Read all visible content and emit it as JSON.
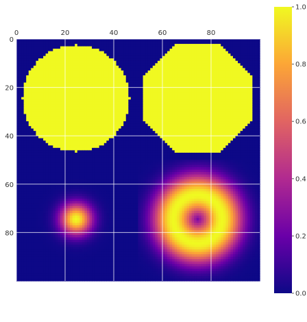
{
  "chart_data": {
    "type": "heatmap",
    "title": "",
    "xlabel": "",
    "ylabel": "",
    "grid": true,
    "image_shape": [
      100,
      100
    ],
    "x_axis_position": "top",
    "xlim": [
      0,
      100
    ],
    "ylim": [
      100,
      0
    ],
    "x_ticks": [
      0,
      20,
      40,
      60,
      80
    ],
    "y_ticks": [
      0,
      20,
      40,
      60,
      80
    ],
    "colormap": "plasma",
    "colormap_stops": [
      "#0d0887",
      "#6a00a8",
      "#b12a90",
      "#e16462",
      "#fca636",
      "#f0f921"
    ],
    "colorbar": {
      "range": [
        0.0,
        1.0
      ],
      "ticks": [
        0.0,
        0.2,
        0.4,
        0.6,
        0.8,
        1.0
      ],
      "tick_labels": [
        "0.0",
        "0.2",
        "0.4",
        "0.6",
        "0.8",
        "1.0"
      ]
    },
    "panels": [
      {
        "name": "circle",
        "kind": "disk",
        "center": [
          24.5,
          24.5
        ],
        "radius": 22,
        "inside": 1.0,
        "outside": 0.0
      },
      {
        "name": "octagon",
        "kind": "octagon",
        "center": [
          74.5,
          24.5
        ],
        "apothem": 22,
        "inside": 1.0,
        "outside": 0.0
      },
      {
        "name": "gaussian",
        "kind": "gaussian",
        "center": [
          24.5,
          74.5
        ],
        "sigma": 4.5,
        "peak": 1.0,
        "outside": 0.0
      },
      {
        "name": "ring",
        "kind": "ring",
        "center": [
          74.5,
          74.5
        ],
        "ring_radius": 10,
        "width": 6,
        "peak": 1.0,
        "outside": 0.0
      }
    ]
  }
}
